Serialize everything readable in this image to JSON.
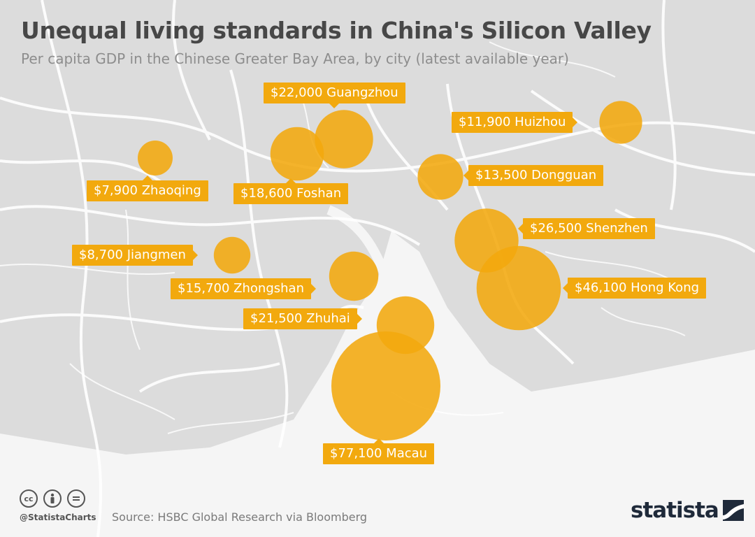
{
  "header": {
    "title": "Unequal living standards in China's Silicon Valley",
    "subtitle": "Per capita GDP in the Chinese Greater Bay Area, by city (latest available year)"
  },
  "cities": [
    {
      "name": "Guangzhou",
      "value_label": "$22,000",
      "gdp_per_capita": 22000
    },
    {
      "name": "Huizhou",
      "value_label": "$11,900",
      "gdp_per_capita": 11900
    },
    {
      "name": "Zhaoqing",
      "value_label": "$7,900",
      "gdp_per_capita": 7900
    },
    {
      "name": "Foshan",
      "value_label": "$18,600",
      "gdp_per_capita": 18600
    },
    {
      "name": "Dongguan",
      "value_label": "$13,500",
      "gdp_per_capita": 13500
    },
    {
      "name": "Shenzhen",
      "value_label": "$26,500",
      "gdp_per_capita": 26500
    },
    {
      "name": "Jiangmen",
      "value_label": "$8,700",
      "gdp_per_capita": 8700
    },
    {
      "name": "Zhongshan",
      "value_label": "$15,700",
      "gdp_per_capita": 15700
    },
    {
      "name": "Hong Kong",
      "value_label": "$46,100",
      "gdp_per_capita": 46100
    },
    {
      "name": "Zhuhai",
      "value_label": "$21,500",
      "gdp_per_capita": 21500
    },
    {
      "name": "Macau",
      "value_label": "$77,100",
      "gdp_per_capita": 77100
    }
  ],
  "footer": {
    "handle": "@StatistaCharts",
    "source": "Source: HSBC Global Research via Bloomberg",
    "brand": "statista",
    "cc_icons": [
      "cc",
      "by",
      "nd"
    ]
  },
  "colors": {
    "bubble": "#f2a90e",
    "land": "#dcdcdc",
    "sea": "#f6f6f6",
    "roads": "#ffffff"
  }
}
